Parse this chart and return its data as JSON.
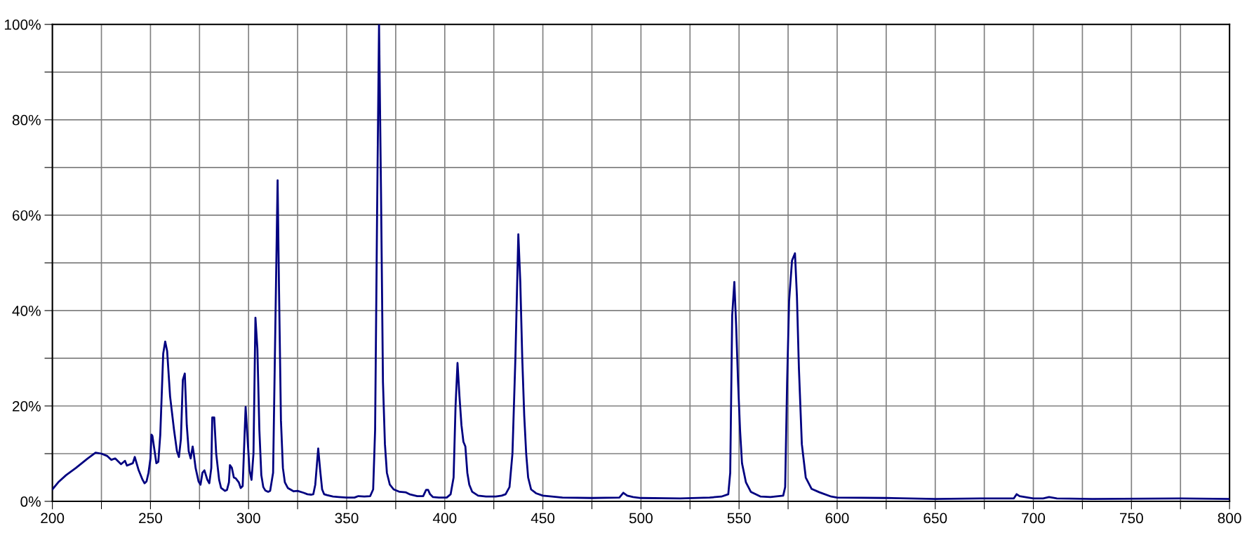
{
  "chart_data": {
    "type": "line",
    "x": [
      200,
      203,
      207,
      212,
      218,
      222,
      225,
      228,
      230,
      232,
      235,
      237,
      238,
      241,
      242,
      244,
      246,
      247,
      248,
      249,
      250,
      250.5,
      251,
      253,
      254,
      255,
      256.5,
      257.5,
      258.5,
      260,
      262,
      263.5,
      264.5,
      265.5,
      266.5,
      267.5,
      268.5,
      269.5,
      270.5,
      271.5,
      272,
      273,
      274.5,
      275.5,
      276.5,
      277.5,
      279,
      280,
      281,
      281.5,
      282.5,
      283.5,
      285,
      286,
      288,
      289,
      290,
      290.5,
      291.5,
      292.5,
      293.5,
      295,
      296,
      297,
      298.5,
      299.5,
      300.5,
      301.5,
      302.5,
      303.5,
      304.5,
      305.5,
      306.5,
      307.5,
      308.5,
      310,
      311,
      312.5,
      314.8,
      315.5,
      316.5,
      317.5,
      318.5,
      320,
      323,
      325,
      328,
      330,
      332,
      333,
      334,
      335.5,
      336.5,
      337.5,
      338.5,
      340,
      343,
      346,
      350,
      354,
      356,
      359,
      362,
      363.5,
      364.5,
      365.5,
      366.5,
      367.5,
      368.5,
      369.5,
      370.5,
      372,
      374,
      377,
      380,
      382,
      386,
      389,
      390.5,
      391.5,
      392.5,
      394,
      397,
      401,
      403,
      404.5,
      405.5,
      406.5,
      407.5,
      408.5,
      409.5,
      410.5,
      411.5,
      412.5,
      414,
      417,
      421,
      426,
      429,
      431,
      433,
      434.5,
      436,
      437.5,
      438.5,
      439.5,
      440.5,
      441.5,
      442.5,
      444,
      446.5,
      450,
      460,
      475,
      489,
      491,
      493,
      496,
      500,
      520,
      535,
      541,
      544.5,
      545.5,
      546.5,
      547.6,
      548.5,
      549.5,
      550.5,
      551.5,
      553.5,
      556,
      561,
      566,
      572.5,
      573.5,
      574.5,
      575.5,
      577,
      578.5,
      579.5,
      580.5,
      582,
      584,
      587,
      591,
      597,
      600,
      625,
      650,
      673,
      690,
      691.5,
      693,
      700,
      705,
      708,
      712,
      730,
      775,
      800
    ],
    "values": [
      2.5,
      4,
      5.5,
      7,
      9,
      10.2,
      10,
      9.5,
      8.7,
      9,
      7.8,
      8.5,
      7.5,
      8,
      9.3,
      6.5,
      4.5,
      3.8,
      4.2,
      6,
      9,
      14,
      13.7,
      8,
      8.3,
      14,
      31,
      33.5,
      31.5,
      22,
      15,
      10.5,
      9.3,
      13,
      25.5,
      26.8,
      16,
      10.5,
      9,
      11.5,
      10.2,
      7,
      4.2,
      3.5,
      6,
      6.5,
      4.5,
      3.8,
      7,
      17.6,
      17.6,
      10,
      4.5,
      2.8,
      2.2,
      2.4,
      4,
      7.6,
      7,
      5,
      4.8,
      4,
      2.8,
      3.2,
      19.8,
      13,
      6.5,
      4.5,
      10,
      38.5,
      32,
      15,
      5.5,
      3,
      2.3,
      2,
      2.2,
      6,
      67.3,
      45,
      17,
      7,
      4,
      2.8,
      2.1,
      2.2,
      1.8,
      1.5,
      1.4,
      1.5,
      3.5,
      11.1,
      6.5,
      2.5,
      1.5,
      1.3,
      1,
      0.9,
      0.8,
      0.8,
      1.1,
      1,
      1.1,
      2.5,
      15,
      60,
      100,
      65,
      25,
      12,
      6,
      3.5,
      2.5,
      2,
      1.9,
      1.5,
      1.1,
      1.1,
      2.4,
      2.4,
      1.5,
      0.9,
      0.8,
      0.8,
      1.5,
      5,
      20,
      29,
      22,
      16,
      12.5,
      11.5,
      6,
      3.5,
      2,
      1.2,
      1,
      1,
      1.2,
      1.5,
      3,
      10,
      30,
      56,
      46,
      30,
      18,
      10,
      5,
      2.5,
      1.7,
      1.2,
      0.8,
      0.7,
      0.8,
      1.8,
      1.2,
      0.9,
      0.7,
      0.6,
      0.8,
      1,
      1.5,
      6,
      39,
      46,
      37,
      25,
      15,
      8,
      4,
      2,
      1,
      0.9,
      1.2,
      3,
      25,
      42,
      50.5,
      52,
      43,
      28,
      12,
      5,
      2.6,
      1.9,
      1,
      0.8,
      0.7,
      0.5,
      0.6,
      0.6,
      1.5,
      1.1,
      0.6,
      0.6,
      0.9,
      0.6,
      0.5,
      0.6,
      0.5
    ],
    "color": "#000080",
    "xlim": [
      200,
      800
    ],
    "xticks": [
      200,
      {
        "value": 225,
        "label": null
      },
      250,
      {
        "value": 275,
        "label": null
      },
      300,
      {
        "value": 325,
        "label": null
      },
      350,
      {
        "value": 375,
        "label": null
      },
      400,
      {
        "value": 425,
        "label": null
      },
      450,
      {
        "value": 475,
        "label": null
      },
      500,
      {
        "value": 525,
        "label": null
      },
      550,
      {
        "value": 575,
        "label": null
      },
      600,
      {
        "value": 625,
        "label": null
      },
      650,
      {
        "value": 675,
        "label": null
      },
      700,
      {
        "value": 725,
        "label": null
      },
      750,
      {
        "value": 775,
        "label": null
      },
      800
    ],
    "ylim": [
      0,
      100
    ],
    "yticks": [
      {
        "value": 0,
        "label": "0%"
      },
      {
        "value": 10,
        "label": null
      },
      {
        "value": 20,
        "label": "20%"
      },
      {
        "value": 30,
        "label": null
      },
      {
        "value": 40,
        "label": "40%"
      },
      {
        "value": 50,
        "label": null
      },
      {
        "value": 60,
        "label": "60%"
      },
      {
        "value": 70,
        "label": null
      },
      {
        "value": 80,
        "label": "80%"
      },
      {
        "value": 90,
        "label": null
      },
      {
        "value": 100,
        "label": "100%"
      }
    ],
    "grid": true,
    "marker": "none",
    "line_style": "solid"
  }
}
